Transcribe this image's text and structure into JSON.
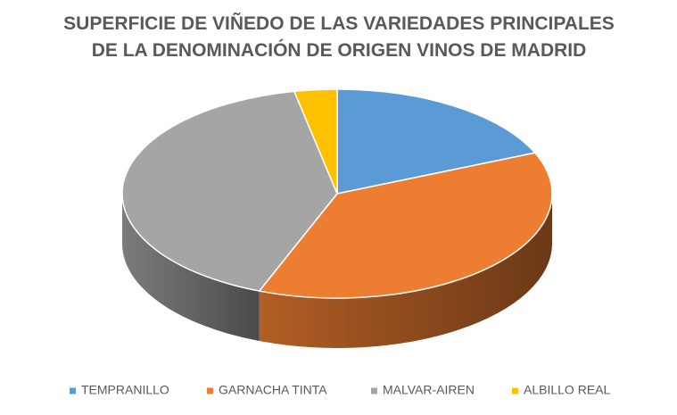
{
  "chart_data": {
    "type": "pie3d",
    "title": "SUPERFICIE DE VIÑEDO DE LAS VARIEDADES PRINCIPALES DE LA DENOMINACIÓN DE ORIGEN VINOS DE MADRID",
    "categories": [
      "TEMPRANILLO",
      "GARNACHA TINTA",
      "MALVAR-AIREN",
      "ALBILLO REAL"
    ],
    "values": [
      18.6,
      37.3,
      40.9,
      3.2
    ],
    "colors": [
      "#5b9bd5",
      "#ed7d31",
      "#a5a5a5",
      "#ffc000"
    ],
    "legend": "bottom"
  }
}
